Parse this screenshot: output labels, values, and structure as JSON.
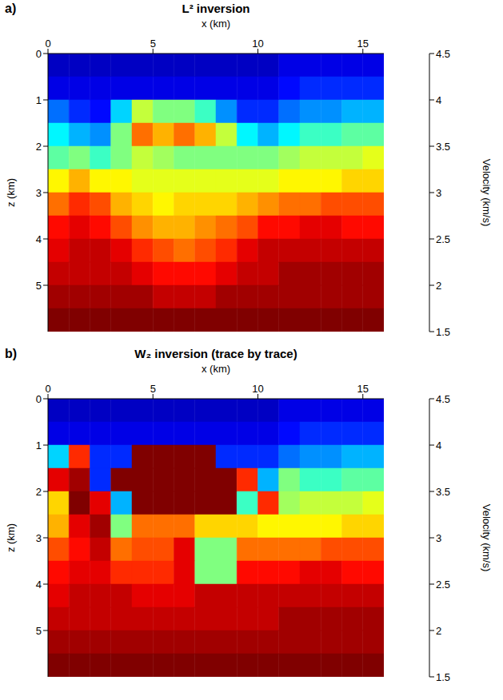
{
  "chart_data": [
    {
      "type": "heatmap",
      "panel": "a)",
      "title": "L² inversion",
      "xlabel": "x (km)",
      "ylabel": "z (km)",
      "xlim": [
        0,
        16
      ],
      "xticks": [
        0,
        5,
        10,
        15
      ],
      "ylim": [
        0,
        6
      ],
      "yticks": [
        0,
        1,
        2,
        3,
        4,
        5
      ],
      "color": "jet",
      "x_edges": [
        0,
        1,
        2,
        3,
        4,
        5,
        6,
        7,
        8,
        9,
        10,
        11,
        12,
        13,
        14,
        15,
        16
      ],
      "z_edges": [
        0,
        0.5,
        1,
        1.5,
        2,
        2.5,
        3,
        3.5,
        4,
        4.5,
        5,
        5.5,
        6
      ],
      "cells": [
        [
          1.7,
          1.7,
          1.7,
          1.7,
          1.7,
          1.7,
          1.7,
          1.7,
          1.7,
          1.7,
          1.7,
          1.8,
          1.8,
          1.8,
          1.8,
          1.8
        ],
        [
          1.8,
          1.8,
          1.8,
          1.8,
          1.8,
          1.8,
          1.8,
          1.8,
          1.8,
          1.8,
          1.8,
          1.9,
          2.0,
          2.0,
          2.0,
          2.0
        ],
        [
          2.2,
          2.0,
          1.9,
          2.5,
          3.2,
          3.0,
          3.0,
          2.8,
          2.3,
          2.0,
          2.0,
          2.2,
          2.3,
          2.3,
          2.4,
          2.4
        ],
        [
          2.6,
          2.4,
          2.3,
          3.0,
          3.8,
          3.6,
          3.8,
          3.6,
          3.2,
          2.6,
          2.4,
          2.6,
          2.8,
          2.8,
          2.9,
          2.9
        ],
        [
          2.9,
          3.0,
          2.8,
          3.0,
          3.2,
          3.1,
          3.0,
          3.0,
          3.0,
          3.0,
          3.0,
          3.1,
          3.2,
          3.2,
          3.2,
          3.3
        ],
        [
          3.4,
          3.6,
          3.4,
          3.4,
          3.3,
          3.3,
          3.3,
          3.3,
          3.3,
          3.3,
          3.3,
          3.4,
          3.4,
          3.4,
          3.5,
          3.5
        ],
        [
          3.8,
          4.0,
          3.9,
          3.6,
          3.5,
          3.4,
          3.5,
          3.5,
          3.5,
          3.6,
          3.7,
          3.8,
          3.8,
          3.9,
          3.9,
          3.9
        ],
        [
          4.1,
          4.2,
          4.1,
          3.9,
          3.7,
          3.6,
          3.6,
          3.7,
          3.8,
          3.9,
          4.1,
          4.1,
          4.2,
          4.2,
          4.1,
          4.1
        ],
        [
          4.2,
          4.3,
          4.3,
          4.2,
          4.0,
          3.9,
          3.8,
          3.9,
          4.0,
          4.2,
          4.3,
          4.3,
          4.3,
          4.3,
          4.3,
          4.3
        ],
        [
          4.3,
          4.3,
          4.3,
          4.3,
          4.2,
          4.1,
          4.1,
          4.1,
          4.2,
          4.3,
          4.3,
          4.4,
          4.4,
          4.4,
          4.4,
          4.4
        ],
        [
          4.4,
          4.4,
          4.4,
          4.4,
          4.4,
          4.3,
          4.3,
          4.3,
          4.4,
          4.4,
          4.4,
          4.4,
          4.4,
          4.4,
          4.4,
          4.4
        ],
        [
          4.5,
          4.5,
          4.5,
          4.5,
          4.5,
          4.5,
          4.5,
          4.5,
          4.5,
          4.5,
          4.5,
          4.5,
          4.5,
          4.5,
          4.5,
          4.5
        ]
      ],
      "colorbar": {
        "label": "Velocity (km/s)",
        "range": [
          1.5,
          4.5
        ],
        "ticks": [
          1.5,
          2,
          2.5,
          3,
          3.5,
          4,
          4.5
        ]
      }
    },
    {
      "type": "heatmap",
      "panel": "b)",
      "title": "W₂ inversion (trace by trace)",
      "xlabel": "x (km)",
      "ylabel": "z (km)",
      "xlim": [
        0,
        16
      ],
      "xticks": [
        0,
        5,
        10,
        15
      ],
      "ylim": [
        0,
        6
      ],
      "yticks": [
        0,
        1,
        2,
        3,
        4,
        5
      ],
      "color": "jet",
      "x_edges": [
        0,
        1,
        2,
        3,
        4,
        5,
        6,
        7,
        8,
        9,
        10,
        11,
        12,
        13,
        14,
        15,
        16
      ],
      "z_edges": [
        0,
        0.5,
        1,
        1.5,
        2,
        2.5,
        3,
        3.5,
        4,
        4.5,
        5,
        5.5,
        6
      ],
      "cells": [
        [
          1.7,
          1.7,
          1.7,
          1.7,
          1.7,
          1.7,
          1.7,
          1.7,
          1.7,
          1.7,
          1.7,
          1.8,
          1.8,
          1.8,
          1.8,
          1.8
        ],
        [
          1.8,
          1.8,
          1.8,
          1.8,
          1.8,
          1.8,
          1.8,
          1.8,
          1.8,
          1.8,
          1.8,
          1.9,
          2.0,
          2.0,
          2.0,
          2.0
        ],
        [
          2.5,
          4.0,
          2.0,
          2.0,
          4.5,
          4.5,
          4.5,
          4.5,
          2.0,
          2.0,
          2.0,
          2.2,
          2.3,
          2.3,
          2.4,
          2.4
        ],
        [
          4.2,
          4.4,
          2.0,
          4.5,
          4.5,
          4.5,
          4.5,
          4.5,
          4.5,
          4.0,
          2.4,
          3.0,
          2.8,
          2.8,
          2.9,
          2.9
        ],
        [
          3.5,
          4.5,
          4.2,
          2.4,
          4.5,
          4.5,
          4.5,
          4.5,
          4.5,
          2.8,
          4.0,
          3.1,
          3.2,
          3.2,
          3.2,
          3.3
        ],
        [
          3.6,
          4.2,
          4.4,
          3.0,
          3.8,
          3.8,
          3.8,
          3.5,
          3.5,
          3.5,
          3.4,
          3.4,
          3.4,
          3.4,
          3.5,
          3.5
        ],
        [
          3.9,
          4.1,
          4.3,
          3.8,
          3.9,
          3.9,
          4.2,
          3.0,
          3.0,
          3.8,
          3.8,
          3.8,
          3.8,
          3.9,
          3.9,
          3.9
        ],
        [
          4.1,
          4.2,
          4.2,
          4.0,
          4.0,
          4.0,
          4.2,
          3.0,
          3.0,
          4.1,
          4.1,
          4.1,
          4.2,
          4.2,
          4.1,
          4.1
        ],
        [
          4.2,
          4.3,
          4.3,
          4.3,
          4.2,
          4.2,
          4.2,
          4.3,
          4.3,
          4.3,
          4.3,
          4.3,
          4.3,
          4.3,
          4.3,
          4.3
        ],
        [
          4.3,
          4.3,
          4.3,
          4.3,
          4.3,
          4.3,
          4.3,
          4.3,
          4.3,
          4.3,
          4.3,
          4.4,
          4.4,
          4.4,
          4.4,
          4.4
        ],
        [
          4.4,
          4.4,
          4.4,
          4.4,
          4.4,
          4.4,
          4.4,
          4.4,
          4.4,
          4.4,
          4.4,
          4.4,
          4.4,
          4.4,
          4.4,
          4.4
        ],
        [
          4.5,
          4.5,
          4.5,
          4.5,
          4.5,
          4.5,
          4.5,
          4.5,
          4.5,
          4.5,
          4.5,
          4.5,
          4.5,
          4.5,
          4.5,
          4.5
        ]
      ],
      "colorbar": {
        "label": "Velocity (km/s)",
        "range": [
          1.5,
          4.5
        ],
        "ticks": [
          1.5,
          2,
          2.5,
          3,
          3.5,
          4,
          4.5
        ]
      }
    }
  ]
}
